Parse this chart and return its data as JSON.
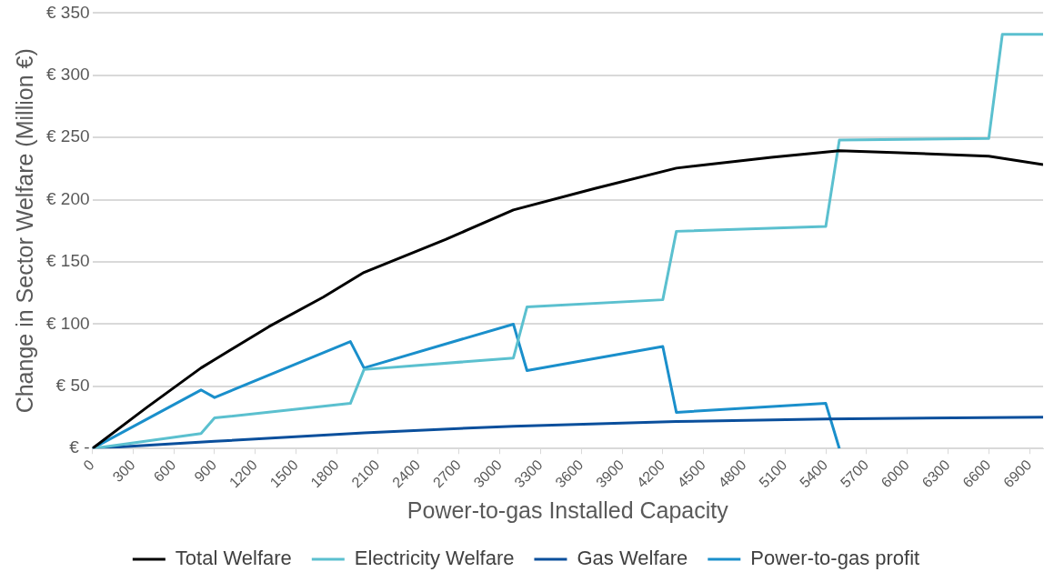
{
  "chart_data": {
    "type": "line",
    "xlabel": "Power-to-gas Installed Capacity",
    "ylabel": "Change in Sector Welfare (Million €)",
    "xlim": [
      0,
      7000
    ],
    "xticks": [
      0,
      300,
      600,
      900,
      1200,
      1500,
      1800,
      2100,
      2400,
      2700,
      3000,
      3300,
      3600,
      3900,
      4200,
      4500,
      4800,
      5100,
      5400,
      5700,
      6000,
      6300,
      6600,
      6900
    ],
    "ylim": [
      0,
      350
    ],
    "yticks": [
      {
        "value": 0,
        "label": "€ -"
      },
      {
        "value": 50,
        "label": "€ 50"
      },
      {
        "value": 100,
        "label": "€ 100"
      },
      {
        "value": 150,
        "label": "€ 150"
      },
      {
        "value": 200,
        "label": "€ 200"
      },
      {
        "value": 250,
        "label": "€ 250"
      },
      {
        "value": 300,
        "label": "€ 300"
      },
      {
        "value": 350,
        "label": "€ 350"
      }
    ],
    "grid": "y",
    "legend": "bottom",
    "marker": "none",
    "line_style": "solid",
    "series": [
      {
        "name": "Total Welfare",
        "color": "#000000",
        "x": [
          0,
          400,
          800,
          900,
          1300,
          1700,
          2000,
          2600,
          3100,
          3700,
          4300,
          5000,
          5500,
          5900,
          6600,
          7000
        ],
        "values": [
          0,
          33,
          64.8,
          71.4,
          98,
          121.7,
          141.6,
          168,
          191.8,
          209,
          225.4,
          234.1,
          239.4,
          238,
          235,
          228.3
        ]
      },
      {
        "name": "Electricity Welfare",
        "color": "#5bc0cf",
        "x": [
          0,
          800,
          900,
          1900,
          2000,
          3100,
          3200,
          4200,
          4300,
          5400,
          5500,
          6600,
          6700,
          7000
        ],
        "values": [
          0,
          12,
          24.6,
          36.3,
          63.5,
          72.8,
          113.8,
          119.6,
          174.6,
          178.6,
          247.9,
          249.2,
          332.9,
          332.9
        ]
      },
      {
        "name": "Gas Welfare",
        "color": "#0a4f9c",
        "x": [
          0,
          900,
          2000,
          3100,
          4300,
          5400,
          7000
        ],
        "values": [
          0,
          5.8,
          12.7,
          18,
          21.7,
          23.8,
          25.2
        ]
      },
      {
        "name": "Power-to-gas profit",
        "color": "#1a8fcb",
        "x": [
          0,
          800,
          900,
          1900,
          2000,
          3100,
          3200,
          4200,
          4300,
          5400,
          5500
        ],
        "values": [
          0,
          47.1,
          41,
          86,
          64.8,
          100,
          62.7,
          82,
          29.1,
          36.3,
          0
        ]
      }
    ]
  }
}
